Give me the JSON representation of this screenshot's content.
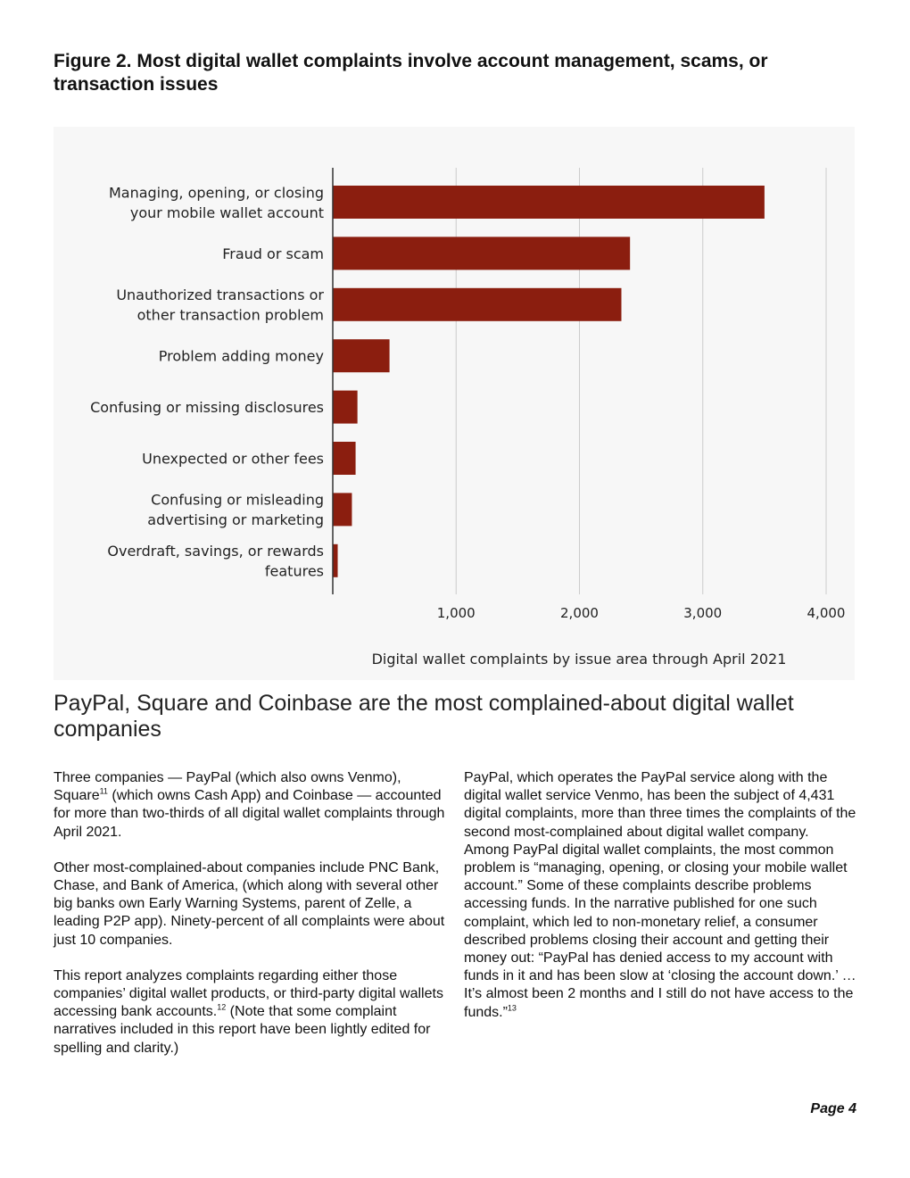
{
  "figure": {
    "title": "Figure 2. Most digital wallet complaints involve account management, scams, or transaction issues"
  },
  "chart_data": {
    "type": "bar",
    "orientation": "horizontal",
    "categories": [
      [
        "Managing, opening, or closing",
        "your mobile wallet account"
      ],
      [
        "Fraud or scam"
      ],
      [
        "Unauthorized transactions or",
        "other transaction problem"
      ],
      [
        "Problem adding money"
      ],
      [
        "Confusing or missing disclosures"
      ],
      [
        "Unexpected or other fees"
      ],
      [
        "Confusing or misleading",
        "advertising or marketing"
      ],
      [
        "Overdraft, savings, or rewards",
        "features"
      ]
    ],
    "values": [
      3500,
      2410,
      2340,
      460,
      200,
      185,
      155,
      40
    ],
    "xlim": [
      0,
      4000
    ],
    "xticks": [
      1000,
      2000,
      3000,
      4000
    ],
    "xtick_labels": [
      "1,000",
      "2,000",
      "3,000",
      "4,000"
    ],
    "xlabel": "Digital wallet complaints by issue area through April 2021",
    "ylabel": "",
    "title": "",
    "grid": "vertical",
    "bar_color": "#8b1e0f",
    "background": "#f7f7f7"
  },
  "section_heading": "PayPal, Square and Coinbase are the most complained-about digital wallet companies",
  "left_column": {
    "p1_a": "Three companies — PayPal (which also owns Venmo), Square",
    "p1_fn": "11",
    "p1_b": " (which owns Cash App) and Coinbase — accounted for more than two-thirds of all digital wallet complaints through April 2021.",
    "p2": "Other most-complained-about companies include PNC Bank, Chase, and Bank of America, (which along with several other big banks own Early Warning Systems, parent of Zelle, a leading P2P app). Ninety-percent of all complaints were about just 10 companies.",
    "p3_a": "This report analyzes complaints regarding either those companies’ digital wallet products, or third-party digital wallets accessing bank accounts.",
    "p3_fn": "12",
    "p3_b": " (Note that some complaint narratives included in this report have been lightly edited for spelling and clarity.)"
  },
  "right_column": {
    "p1_a": "PayPal, which operates the PayPal service along with the digital wallet service Venmo, has been the subject of 4,431 digital complaints, more than three times the complaints of the second most-complained about digital wallet company. Among PayPal digital wallet complaints, the most common problem is “managing, opening, or closing your mobile wallet account.” Some of these complaints describe problems accessing funds. In the narrative published for one such complaint, which led to non-monetary relief, a consumer described problems closing their account and getting their money out: “PayPal has denied access to my account with funds in it and has been slow at ‘closing the account down.’ … It’s almost been 2 months and I still do not have access to the funds.”",
    "p1_fn": "13"
  },
  "page_number": "Page 4"
}
